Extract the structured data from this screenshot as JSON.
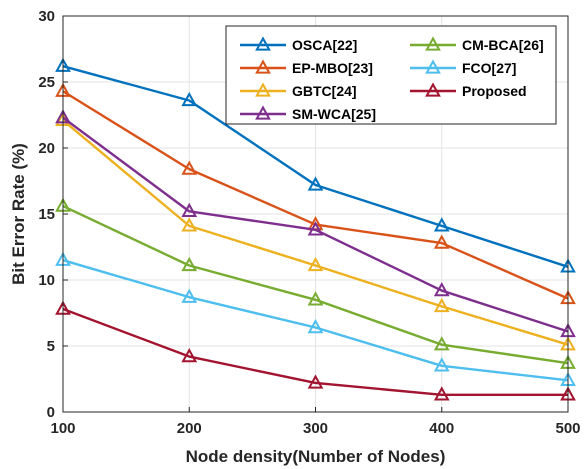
{
  "chart_data": {
    "type": "line",
    "title": "",
    "xlabel": "Node density(Number of Nodes)",
    "ylabel": "Bit Error Rate (%)",
    "x": [
      100,
      200,
      300,
      400,
      500
    ],
    "xlim": [
      100,
      500
    ],
    "ylim": [
      0,
      30
    ],
    "xticks": [
      "100",
      "200",
      "300",
      "400",
      "500"
    ],
    "yticks": [
      "0",
      "5",
      "10",
      "15",
      "20",
      "25",
      "30"
    ],
    "grid": true,
    "legend_position": "top-right",
    "marker": "triangle",
    "series": [
      {
        "name": "OSCA[22]",
        "color": "#0072BD",
        "values": [
          26.2,
          23.6,
          17.2,
          14.1,
          11.0
        ]
      },
      {
        "name": "EP-MBO[23]",
        "color": "#D95319",
        "values": [
          24.3,
          18.4,
          14.2,
          12.8,
          8.6
        ]
      },
      {
        "name": "GBTC[24]",
        "color": "#EDB120",
        "values": [
          22.1,
          14.1,
          11.1,
          8.0,
          5.1
        ]
      },
      {
        "name": "SM-WCA[25]",
        "color": "#7E2F8E",
        "values": [
          22.3,
          15.2,
          13.8,
          9.2,
          6.1
        ]
      },
      {
        "name": "CM-BCA[26]",
        "color": "#77AC30",
        "values": [
          15.6,
          11.1,
          8.5,
          5.1,
          3.7
        ]
      },
      {
        "name": "FCO[27]",
        "color": "#4DBEEE",
        "values": [
          11.5,
          8.7,
          6.4,
          3.5,
          2.4
        ]
      },
      {
        "name": "Proposed",
        "color": "#A2142F",
        "values": [
          7.8,
          4.2,
          2.2,
          1.3,
          1.3
        ]
      }
    ]
  }
}
